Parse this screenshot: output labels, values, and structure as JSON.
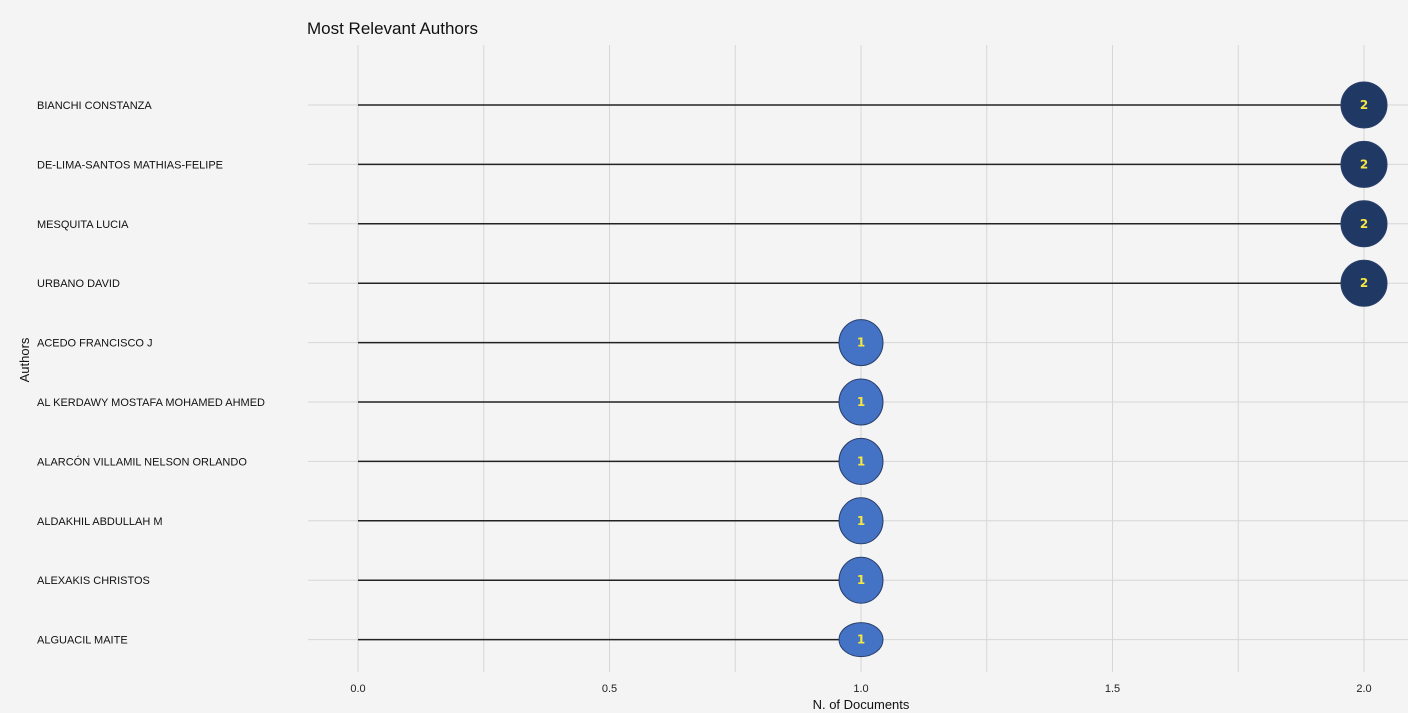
{
  "chart_data": {
    "type": "lollipop",
    "title": "Most Relevant Authors",
    "xlabel": "N. of Documents",
    "ylabel": "Authors",
    "xlim": [
      0,
      2.0
    ],
    "x_ticks": [
      "0.0",
      "0.5",
      "1.0",
      "1.5",
      "2.0"
    ],
    "grid": true,
    "categories": [
      "BIANCHI CONSTANZA",
      "DE-LIMA-SANTOS MATHIAS-FELIPE",
      "MESQUITA LUCIA",
      "URBANO DAVID",
      "ACEDO FRANCISCO J",
      "AL KERDAWY MOSTAFA MOHAMED AHMED",
      "ALARCÓN VILLAMIL NELSON ORLANDO",
      "ALDAKHIL ABDULLAH M",
      "ALEXAKIS CHRISTOS",
      "ALGUACIL MAITE"
    ],
    "values": [
      2,
      2,
      2,
      2,
      1,
      1,
      1,
      1,
      1,
      1
    ],
    "value_labels": [
      "2",
      "2",
      "2",
      "2",
      "1",
      "1",
      "1",
      "1",
      "1",
      "1"
    ],
    "colors": {
      "high": "#1f3864",
      "low": "#4472c4",
      "label_text": "#f5e642",
      "stem": "#222222",
      "grid": "#d6d6d6"
    }
  }
}
